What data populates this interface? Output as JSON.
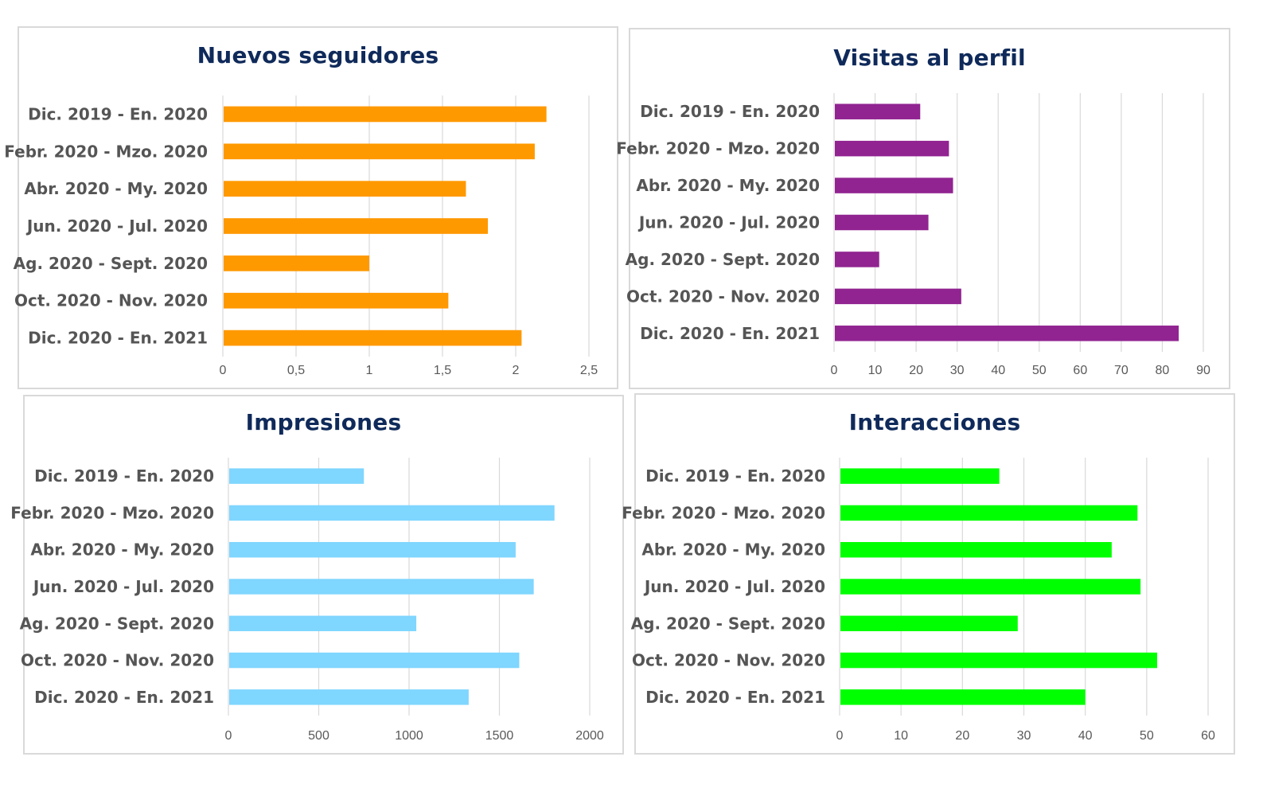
{
  "chart_data": [
    {
      "type": "bar",
      "orientation": "horizontal",
      "title": "Nuevos seguidores",
      "categories": [
        "Dic. 2019 - En. 2020",
        "Febr. 2020 - Mzo. 2020",
        "Abr. 2020 - My. 2020",
        "Jun. 2020 - Jul. 2020",
        "Ag. 2020 - Sept. 2020",
        "Oct. 2020 - Nov. 2020",
        "Dic. 2020 - En. 2021"
      ],
      "values": [
        2.21,
        2.13,
        1.66,
        1.81,
        1.0,
        1.54,
        2.04
      ],
      "xlim": [
        0,
        2.5
      ],
      "ticks": [
        "0",
        "0,5",
        "1",
        "1,5",
        "2",
        "2,5"
      ],
      "color": "#ff9900",
      "grid": "vertical"
    },
    {
      "type": "bar",
      "orientation": "horizontal",
      "title": "Visitas al perfil",
      "categories": [
        "Dic. 2019 - En. 2020",
        "Febr. 2020 - Mzo. 2020",
        "Abr. 2020 - My. 2020",
        "Jun. 2020 - Jul. 2020",
        "Ag. 2020 - Sept. 2020",
        "Oct. 2020 - Nov. 2020",
        "Dic. 2020 - En. 2021"
      ],
      "values": [
        21,
        28,
        29,
        23,
        11,
        31,
        84
      ],
      "xlim": [
        0,
        90
      ],
      "ticks": [
        "0",
        "10",
        "20",
        "30",
        "40",
        "50",
        "60",
        "70",
        "80",
        "90"
      ],
      "color": "#912491",
      "grid": "vertical"
    },
    {
      "type": "bar",
      "orientation": "horizontal",
      "title": "Impresiones",
      "categories": [
        "Dic. 2019 - En. 2020",
        "Febr. 2020 - Mzo. 2020",
        "Abr. 2020 - My. 2020",
        "Jun. 2020 - Jul. 2020",
        "Ag. 2020 - Sept. 2020",
        "Oct. 2020 - Nov. 2020",
        "Dic. 2020 - En. 2021"
      ],
      "values": [
        750,
        1805,
        1590,
        1690,
        1040,
        1610,
        1330
      ],
      "xlim": [
        0,
        2000
      ],
      "ticks": [
        "0",
        "500",
        "1000",
        "1500",
        "2000"
      ],
      "color": "#7fd6ff",
      "grid": "vertical"
    },
    {
      "type": "bar",
      "orientation": "horizontal",
      "title": "Interacciones",
      "categories": [
        "Dic. 2019 - En. 2020",
        "Febr. 2020 - Mzo. 2020",
        "Abr. 2020 - My. 2020",
        "Jun. 2020 - Jul. 2020",
        "Ag. 2020 - Sept. 2020",
        "Oct. 2020 - Nov. 2020",
        "Dic. 2020 - En. 2021"
      ],
      "values": [
        26,
        48.5,
        44.3,
        49,
        29,
        51.7,
        40
      ],
      "xlim": [
        0,
        60
      ],
      "ticks": [
        "0",
        "10",
        "20",
        "30",
        "40",
        "50",
        "60"
      ],
      "color": "#00ff00",
      "grid": "vertical"
    }
  ]
}
